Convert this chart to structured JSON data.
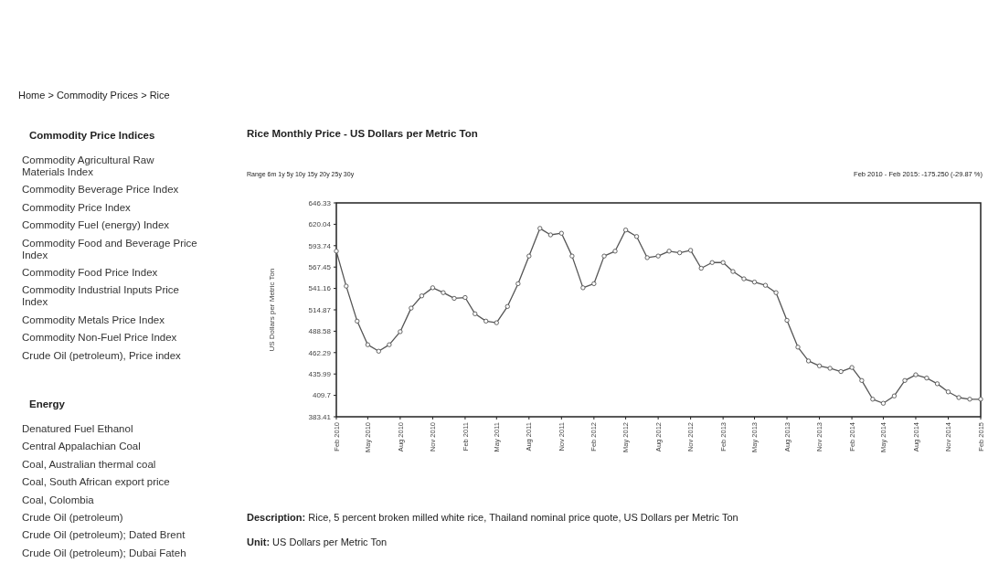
{
  "chart_data": [
    {
      "type": "line",
      "title": "Rice Monthly Price - US Dollars per Metric Ton",
      "ylabel": "US Dollars per Metric Ton",
      "annotations": [
        "Home > Commodity Prices > Rice",
        "Range 6m 1y 5y 10y 15y 20y 25y 30y",
        "Feb 2010 - Feb 2015: -175.250 (-29.87 %)",
        "Description: Rice, 5 percent broken milled white rice, Thailand nominal price quote, US Dollars per Metric Ton",
        "Unit: US Dollars per Metric Ton"
      ],
      "x": [
        "2010-02",
        "2010-03",
        "2010-04",
        "2010-05",
        "2010-06",
        "2010-07",
        "2010-08",
        "2010-09",
        "2010-10",
        "2010-11",
        "2010-12",
        "2011-01",
        "2011-02",
        "2011-03",
        "2011-04",
        "2011-05",
        "2011-06",
        "2011-07",
        "2011-08",
        "2011-09",
        "2011-10",
        "2011-11",
        "2011-12",
        "2012-01",
        "2012-02",
        "2012-03",
        "2012-04",
        "2012-05",
        "2012-06",
        "2012-07",
        "2012-08",
        "2012-09",
        "2012-10",
        "2012-11",
        "2012-12",
        "2013-01",
        "2013-02",
        "2013-03",
        "2013-04",
        "2013-05",
        "2013-06",
        "2013-07",
        "2013-08",
        "2013-09",
        "2013-10",
        "2013-11",
        "2013-12",
        "2014-01",
        "2014-02",
        "2014-03",
        "2014-04",
        "2014-05",
        "2014-06",
        "2014-07",
        "2014-08",
        "2014-09",
        "2014-10",
        "2014-11",
        "2014-12",
        "2015-01",
        "2015-02"
      ],
      "series": [
        {
          "color": "#555555",
          "values": [
            587,
            544,
            501,
            472,
            464,
            472,
            488,
            517,
            532,
            542,
            536,
            529,
            530,
            510,
            501,
            499,
            519,
            547,
            581,
            615,
            607,
            609,
            581,
            542,
            547,
            581,
            587,
            613,
            605,
            579,
            581,
            587,
            585,
            588,
            566,
            573,
            573,
            562,
            553,
            549,
            545,
            536,
            502,
            469,
            452,
            446,
            443,
            439,
            444,
            428,
            405,
            400,
            409,
            428,
            435,
            431,
            424,
            414,
            407,
            405,
            405
          ]
        }
      ],
      "xlim": [
        "2010-02",
        "2015-02"
      ],
      "xticks": [
        {
          "value": "2010-02",
          "label": "Feb 2010"
        },
        {
          "value": "2010-05",
          "label": "May 2010"
        },
        {
          "value": "2010-08",
          "label": "Aug 2010"
        },
        {
          "value": "2010-11",
          "label": "Nov 2010"
        },
        {
          "value": "2011-02",
          "label": "Feb 2011"
        },
        {
          "value": "2011-05",
          "label": "May 2011"
        },
        {
          "value": "2011-08",
          "label": "Aug 2011"
        },
        {
          "value": "2011-11",
          "label": "Nov 2011"
        },
        {
          "value": "2012-02",
          "label": "Feb 2012"
        },
        {
          "value": "2012-05",
          "label": "May 2012"
        },
        {
          "value": "2012-08",
          "label": "Aug 2012"
        },
        {
          "value": "2012-11",
          "label": "Nov 2012"
        },
        {
          "value": "2013-02",
          "label": "Feb 2013"
        },
        {
          "value": "2013-05",
          "label": "May 2013"
        },
        {
          "value": "2013-08",
          "label": "Aug 2013"
        },
        {
          "value": "2013-11",
          "label": "Nov 2013"
        },
        {
          "value": "2014-02",
          "label": "Feb 2014"
        },
        {
          "value": "2014-05",
          "label": "May 2014"
        },
        {
          "value": "2014-08",
          "label": "Aug 2014"
        },
        {
          "value": "2014-11",
          "label": "Nov 2014"
        },
        {
          "value": "2015-02",
          "label": "Feb 2015"
        }
      ],
      "ylim": [
        383.41,
        646.33
      ],
      "yticks": [
        383.41,
        409.7,
        435.99,
        462.29,
        488.58,
        514.87,
        541.16,
        567.45,
        593.74,
        620.04,
        646.33
      ],
      "marker": "circle",
      "line_style": "solid"
    },
    {
      "type": "other",
      "title": "Commodity Price Indices",
      "annotations": [
        "Commodity Agricultural Raw Materials Index",
        "Commodity Beverage Price Index",
        "Commodity Price Index",
        "Commodity Fuel (energy) Index",
        "Commodity Food and Beverage Price Index",
        "Commodity Food Price Index",
        "Commodity Industrial Inputs Price Index",
        "Commodity Metals Price Index",
        "Commodity Non-Fuel Price Index",
        "Crude Oil (petroleum), Price index"
      ]
    },
    {
      "type": "other",
      "title": "Energy",
      "annotations": [
        "Denatured Fuel Ethanol",
        "Central Appalachian Coal",
        "Coal, Australian thermal coal",
        "Coal, South African export price",
        "Coal, Colombia",
        "Crude Oil (petroleum)",
        "Crude Oil (petroleum); Dated Brent",
        "Crude Oil (petroleum); Dubai Fateh"
      ]
    }
  ]
}
